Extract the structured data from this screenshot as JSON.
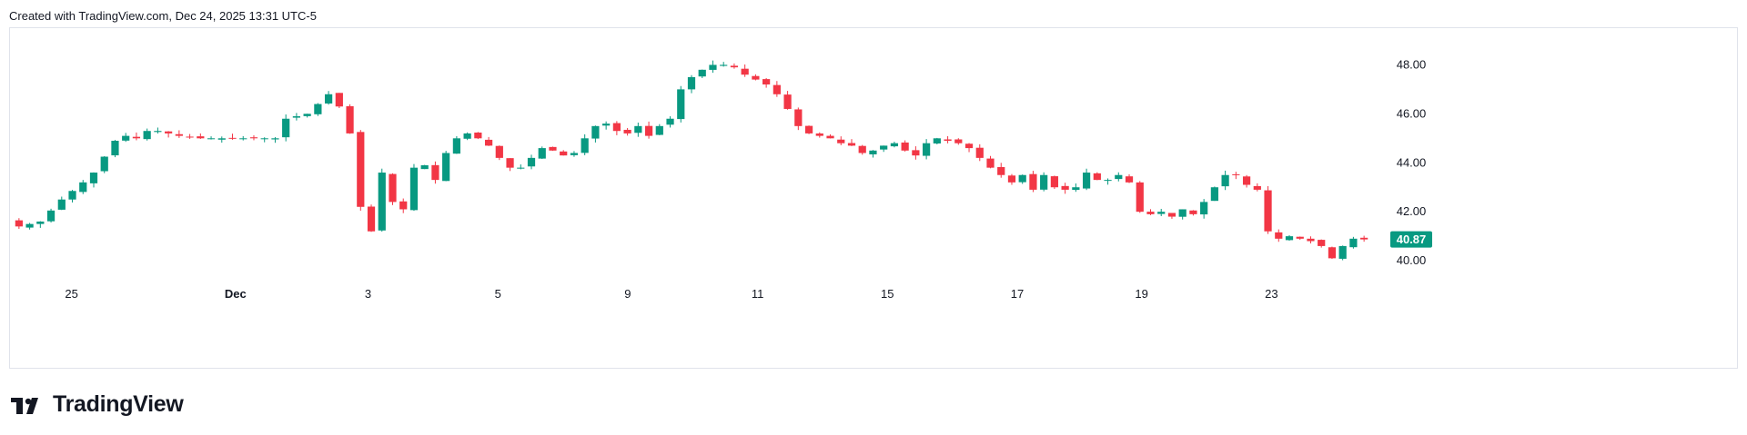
{
  "header": {
    "text": "Created with TradingView.com, Dec 24, 2025 13:31 UTC-5"
  },
  "brand": {
    "name": "TradingView"
  },
  "colors": {
    "up": "#089981",
    "down": "#f23645",
    "grid": "#e0e3eb",
    "text": "#131722",
    "last_price_bg": "#089981"
  },
  "chart_data": {
    "type": "candlestick",
    "x_ticks": [
      "25",
      "Dec",
      "3",
      "5",
      "9",
      "11",
      "15",
      "17",
      "19",
      "23"
    ],
    "y_ticks": [
      "40.00",
      "42.00",
      "44.00",
      "46.00",
      "48.00"
    ],
    "ylim": [
      38.0,
      49.5
    ],
    "last_price": 40.87,
    "last_price_label": "40.87",
    "close_path": [
      [
        0,
        41.4
      ],
      [
        2,
        41.6
      ],
      [
        4,
        42.5
      ],
      [
        6,
        43.2
      ],
      [
        7,
        43.6
      ],
      [
        9,
        44.9
      ],
      [
        10,
        45.1
      ],
      [
        11,
        45.0
      ],
      [
        12,
        45.3
      ],
      [
        13,
        45.3
      ],
      [
        15,
        45.1
      ],
      [
        17,
        45.0
      ],
      [
        20,
        45.0
      ],
      [
        22,
        45.0
      ],
      [
        24,
        45.0
      ],
      [
        25,
        45.8
      ],
      [
        27,
        46.0
      ],
      [
        29,
        46.8
      ],
      [
        30,
        46.3
      ],
      [
        31,
        45.2
      ],
      [
        32,
        42.2
      ],
      [
        33,
        41.2
      ],
      [
        34,
        43.6
      ],
      [
        35,
        42.4
      ],
      [
        36,
        42.1
      ],
      [
        37,
        43.8
      ],
      [
        38,
        43.9
      ],
      [
        39,
        43.3
      ],
      [
        40,
        44.4
      ],
      [
        41,
        45.0
      ],
      [
        42,
        45.2
      ],
      [
        43,
        45.0
      ],
      [
        44,
        44.7
      ],
      [
        45,
        44.2
      ],
      [
        46,
        43.8
      ],
      [
        47,
        43.8
      ],
      [
        48,
        44.2
      ],
      [
        49,
        44.6
      ],
      [
        50,
        44.5
      ],
      [
        51,
        44.3
      ],
      [
        52,
        44.4
      ],
      [
        53,
        45.0
      ],
      [
        54,
        45.5
      ],
      [
        55,
        45.6
      ],
      [
        56,
        45.3
      ],
      [
        57,
        45.2
      ],
      [
        58,
        45.5
      ],
      [
        59,
        45.1
      ],
      [
        60,
        45.5
      ],
      [
        61,
        45.8
      ],
      [
        62,
        47.0
      ],
      [
        63,
        47.5
      ],
      [
        64,
        47.8
      ],
      [
        65,
        48.0
      ],
      [
        66,
        48.0
      ],
      [
        67,
        47.9
      ],
      [
        68,
        47.6
      ],
      [
        69,
        47.4
      ],
      [
        70,
        47.2
      ],
      [
        71,
        46.8
      ],
      [
        72,
        46.2
      ],
      [
        73,
        45.5
      ],
      [
        74,
        45.2
      ],
      [
        75,
        45.1
      ],
      [
        76,
        45.0
      ],
      [
        77,
        44.8
      ],
      [
        78,
        44.7
      ],
      [
        79,
        44.4
      ],
      [
        80,
        44.5
      ],
      [
        81,
        44.7
      ],
      [
        82,
        44.8
      ],
      [
        83,
        44.5
      ],
      [
        84,
        44.3
      ],
      [
        85,
        44.8
      ],
      [
        86,
        45.0
      ],
      [
        87,
        44.9
      ],
      [
        88,
        44.8
      ],
      [
        89,
        44.6
      ],
      [
        90,
        44.2
      ],
      [
        91,
        43.8
      ],
      [
        92,
        43.5
      ],
      [
        93,
        43.2
      ],
      [
        94,
        43.5
      ],
      [
        95,
        42.9
      ],
      [
        96,
        43.5
      ],
      [
        97,
        43.0
      ],
      [
        98,
        42.9
      ],
      [
        99,
        43.0
      ],
      [
        100,
        43.6
      ],
      [
        101,
        43.3
      ],
      [
        102,
        43.3
      ],
      [
        103,
        43.5
      ],
      [
        104,
        43.2
      ],
      [
        105,
        42.0
      ],
      [
        106,
        41.9
      ],
      [
        107,
        42.0
      ],
      [
        108,
        41.8
      ],
      [
        109,
        42.1
      ],
      [
        110,
        41.9
      ],
      [
        111,
        42.4
      ],
      [
        112,
        43.0
      ],
      [
        113,
        43.5
      ],
      [
        114,
        43.5
      ],
      [
        115,
        43.1
      ],
      [
        116,
        42.9
      ],
      [
        117,
        41.2
      ],
      [
        118,
        40.9
      ],
      [
        119,
        41.0
      ],
      [
        120,
        40.9
      ],
      [
        121,
        40.8
      ],
      [
        122,
        40.6
      ],
      [
        123,
        40.1
      ],
      [
        124,
        40.6
      ],
      [
        125,
        40.9
      ],
      [
        126,
        40.87
      ]
    ]
  }
}
